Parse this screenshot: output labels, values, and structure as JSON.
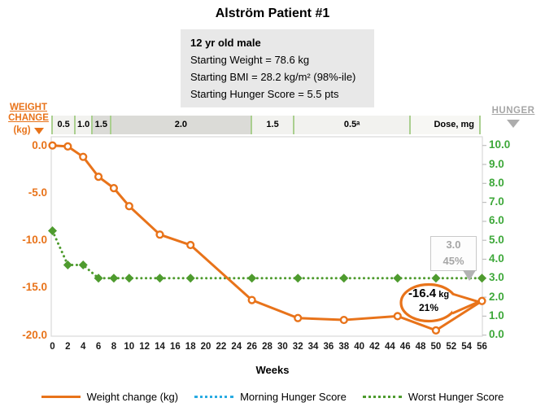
{
  "title": "Alström Patient #1",
  "patient_info": {
    "title": "12 yr old male",
    "lines": [
      "Starting Weight = 78.6 kg",
      "Starting BMI = 28.2 kg/m² (98%-ile)",
      "Starting Hunger Score = 5.5 pts"
    ]
  },
  "left_axis_title": {
    "line1": "WEIGHT",
    "line2": "CHANGE",
    "line3": "(kg)"
  },
  "right_axis_title": "HUNGER",
  "x_axis_label": "Weeks",
  "colors": {
    "orange": "#E8731A",
    "green_series": "#4E9B2E",
    "green_axis_labels": "#3EA83A",
    "blue_legend": "#29ABE2",
    "gray": "#A6A6A6",
    "dose_separator": "#AACF8F",
    "dose_dark": "#DBDBD7",
    "dose_light": "#F2F2EF",
    "plot_border": "#D9D9D9",
    "info_box_bg": "#E8E8E8"
  },
  "chart_data": {
    "type": "line",
    "x": {
      "label": "Weeks",
      "min": 0,
      "max": 56,
      "tick_step": 2,
      "ticks": [
        0,
        2,
        4,
        6,
        8,
        10,
        12,
        14,
        16,
        18,
        20,
        22,
        24,
        26,
        28,
        30,
        32,
        34,
        36,
        38,
        40,
        42,
        44,
        46,
        48,
        50,
        52,
        54,
        56
      ]
    },
    "left_axis": {
      "title": "WEIGHT CHANGE (kg)",
      "min": -20,
      "max": 0,
      "ticks": [
        "0.0",
        "-5.0",
        "-10.0",
        "-15.0",
        "-20.0"
      ]
    },
    "right_axis": {
      "title": "HUNGER",
      "min": 0,
      "max": 10,
      "ticks": [
        "10.0",
        "9.0",
        "8.0",
        "7.0",
        "6.0",
        "5.0",
        "4.0",
        "3.0",
        "2.0",
        "1.0",
        "0.0"
      ]
    },
    "dose_bar": {
      "unit_label": "Dose, mg",
      "segments": [
        {
          "label": "0.5",
          "start_week": 0,
          "end_week": 3,
          "shade": "light"
        },
        {
          "label": "1.0",
          "start_week": 3,
          "end_week": 5.2,
          "shade": "light"
        },
        {
          "label": "1.5",
          "start_week": 5.2,
          "end_week": 7.6,
          "shade": "dark"
        },
        {
          "label": "2.0",
          "start_week": 7.6,
          "end_week": 26,
          "shade": "dark"
        },
        {
          "label": "1.5",
          "start_week": 26,
          "end_week": 31.5,
          "shade": "light"
        },
        {
          "label": "0.5ᵃ",
          "start_week": 31.5,
          "end_week": 46.7,
          "shade": "light"
        },
        {
          "label": "Dose, mg",
          "start_week": 46.7,
          "end_week": 56,
          "shade": "pale",
          "is_unit_label": true
        }
      ]
    },
    "series": [
      {
        "name": "Weight change (kg)",
        "axis": "left",
        "style": "solid",
        "marker": "circle",
        "color": "#E8731A",
        "plotted": true,
        "weeks": [
          0,
          2,
          4,
          6,
          8,
          10,
          14,
          18,
          26,
          32,
          38,
          45,
          50,
          56
        ],
        "values": [
          0.0,
          -0.1,
          -1.2,
          -3.3,
          -4.5,
          -6.4,
          -9.4,
          -10.5,
          -16.3,
          -18.2,
          -18.4,
          -18.0,
          -19.5,
          -16.4
        ]
      },
      {
        "name": "Morning Hunger Score",
        "axis": "right",
        "style": "dotted",
        "color": "#29ABE2",
        "plotted": false,
        "weeks": [],
        "values": []
      },
      {
        "name": "Worst Hunger Score",
        "axis": "right",
        "style": "dotted",
        "marker": "diamond",
        "color": "#4E9B2E",
        "plotted": true,
        "weeks": [
          0,
          2,
          4,
          6,
          8,
          10,
          14,
          18,
          26,
          32,
          38,
          45,
          50,
          56
        ],
        "values": [
          5.5,
          3.7,
          3.7,
          3.0,
          3.0,
          3.0,
          3.0,
          3.0,
          3.0,
          3.0,
          3.0,
          3.0,
          3.0,
          3.0
        ]
      }
    ],
    "callouts": {
      "weight": {
        "value": "-16.4",
        "unit": "kg",
        "percent": "21%",
        "week": 56,
        "series": "Weight change (kg)"
      },
      "hunger": {
        "value": "3.0",
        "percent": "45%",
        "week": 56,
        "series": "Worst Hunger Score"
      }
    }
  },
  "legend": [
    {
      "label": "Weight change (kg)",
      "style": "solid",
      "color": "#E8731A"
    },
    {
      "label": "Morning Hunger Score",
      "style": "dotted",
      "color": "#29ABE2"
    },
    {
      "label": "Worst Hunger Score",
      "style": "dotted",
      "color": "#4E9B2E"
    }
  ]
}
